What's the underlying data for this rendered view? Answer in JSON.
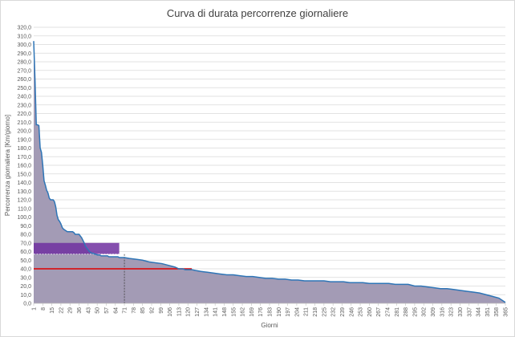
{
  "chart_data": {
    "type": "area",
    "title": "Curva di durata percorrenze giornaliere",
    "xlabel": "Giorni",
    "ylabel": "Percorrenza giornaliera [Km/giorno]",
    "xlim": [
      1,
      365
    ],
    "ylim": [
      0,
      320
    ],
    "y_ticks": [
      "0,0",
      "10,0",
      "20,0",
      "30,0",
      "40,0",
      "50,0",
      "60,0",
      "70,0",
      "80,0",
      "90,0",
      "100,0",
      "110,0",
      "120,0",
      "130,0",
      "140,0",
      "150,0",
      "160,0",
      "170,0",
      "180,0",
      "190,0",
      "200,0",
      "210,0",
      "220,0",
      "230,0",
      "240,0",
      "250,0",
      "260,0",
      "270,0",
      "280,0",
      "290,0",
      "300,0",
      "310,0",
      "320,0"
    ],
    "x_ticks": [
      "1",
      "8",
      "15",
      "22",
      "29",
      "36",
      "43",
      "50",
      "57",
      "64",
      "71",
      "78",
      "85",
      "92",
      "99",
      "106",
      "113",
      "120",
      "127",
      "134",
      "141",
      "148",
      "155",
      "162",
      "169",
      "176",
      "183",
      "190",
      "197",
      "204",
      "211",
      "218",
      "225",
      "232",
      "239",
      "246",
      "253",
      "260",
      "267",
      "274",
      "281",
      "288",
      "295",
      "302",
      "309",
      "316",
      "323",
      "330",
      "337",
      "344",
      "351",
      "358",
      "365"
    ],
    "grid": true,
    "legend": "none",
    "series": [
      {
        "x": [
          1,
          2,
          3,
          4,
          5,
          6,
          7,
          8,
          9,
          10,
          11,
          12,
          13,
          14,
          15,
          16,
          17,
          18,
          19,
          20,
          21,
          22,
          23,
          24,
          25,
          26,
          27,
          28,
          29,
          30,
          31,
          32,
          33,
          34,
          35,
          36,
          37,
          38,
          39,
          40,
          41,
          42,
          43,
          44,
          45,
          46,
          47,
          48,
          49,
          50,
          51,
          52,
          53,
          54,
          55,
          56,
          57,
          58,
          59,
          60,
          61,
          62,
          63,
          64,
          65,
          66,
          67,
          68,
          69,
          70,
          71,
          75,
          80,
          85,
          90,
          95,
          100,
          105,
          110,
          113,
          116,
          118,
          120,
          123,
          126,
          130,
          135,
          140,
          145,
          150,
          155,
          160,
          165,
          170,
          175,
          180,
          185,
          190,
          195,
          200,
          205,
          210,
          215,
          220,
          225,
          230,
          235,
          240,
          245,
          250,
          255,
          260,
          265,
          270,
          275,
          280,
          285,
          290,
          295,
          300,
          305,
          310,
          315,
          320,
          325,
          330,
          335,
          340,
          345,
          350,
          355,
          360,
          363,
          365
        ],
        "values": [
          304,
          260,
          207,
          207,
          206,
          180,
          175,
          160,
          142,
          137,
          131,
          128,
          122,
          120,
          120,
          120,
          118,
          112,
          102,
          97,
          95,
          92,
          88,
          86,
          85,
          84,
          83,
          83,
          83,
          83,
          83,
          82,
          80,
          80,
          80,
          80,
          78,
          76,
          73,
          70,
          66,
          64,
          62,
          60,
          59,
          58,
          58,
          57,
          57,
          56,
          56,
          56,
          55,
          55,
          55,
          55,
          55,
          55,
          54,
          54,
          54,
          54,
          54,
          54,
          54,
          54,
          53,
          53,
          53,
          53,
          53,
          52,
          51,
          50,
          48,
          47,
          46,
          44,
          42,
          40,
          40,
          39,
          39,
          39,
          38,
          37,
          36,
          35,
          34,
          33,
          33,
          32,
          31,
          31,
          30,
          29,
          29,
          28,
          28,
          27,
          27,
          26,
          26,
          26,
          26,
          25,
          25,
          25,
          24,
          24,
          24,
          23,
          23,
          23,
          23,
          22,
          22,
          22,
          20,
          20,
          19,
          18,
          17,
          17,
          16,
          15,
          14,
          13,
          12,
          10,
          8,
          6,
          3,
          1
        ],
        "color": "#2e75b6"
      }
    ],
    "annotations": {
      "purple_block": {
        "x_start": 1,
        "x_end": 67,
        "y_low": 57,
        "y_high": 70,
        "color": "#7030a0"
      },
      "red_line": {
        "x_start": 1,
        "x_end": 123,
        "y": 40,
        "color": "#e00000"
      },
      "dotted_vertical": {
        "x": 71,
        "y_top": 57
      },
      "dotted_horizontal": {
        "x_start": 1,
        "x_end": 67,
        "y": 57
      },
      "area_color": "#a39bb5"
    }
  }
}
